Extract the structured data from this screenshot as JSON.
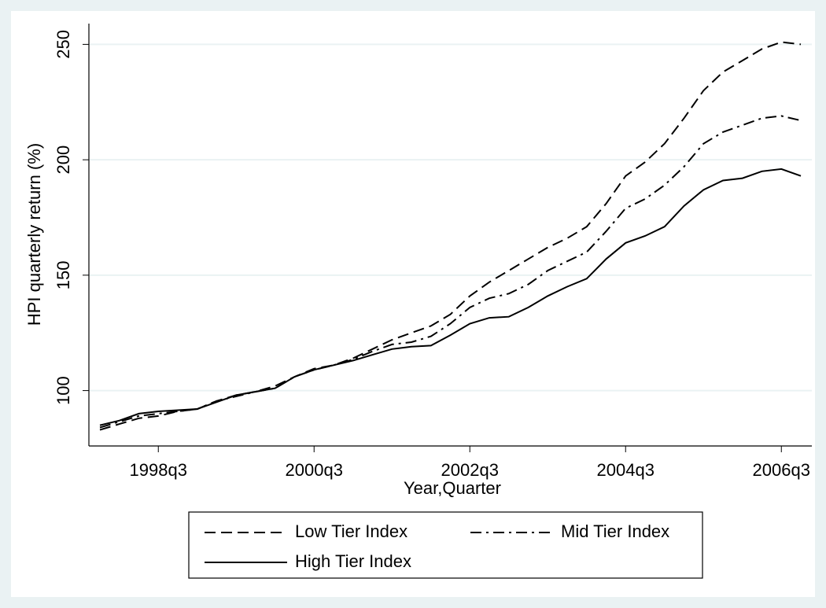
{
  "chart_data": {
    "type": "line",
    "y_label": "HPI quarterly return (%)",
    "x_label": "Year,Quarter",
    "x": [
      "1997q4",
      "1998q1",
      "1998q2",
      "1998q3",
      "1998q4",
      "1999q1",
      "1999q2",
      "1999q3",
      "1999q4",
      "2000q1",
      "2000q2",
      "2000q3",
      "2000q4",
      "2001q1",
      "2001q2",
      "2001q3",
      "2001q4",
      "2002q1",
      "2002q2",
      "2002q3",
      "2002q4",
      "2003q1",
      "2003q2",
      "2003q3",
      "2003q4",
      "2004q1",
      "2004q2",
      "2004q3",
      "2004q4",
      "2005q1",
      "2005q2",
      "2005q3",
      "2005q4",
      "2006q1",
      "2006q2",
      "2006q3",
      "2006q4"
    ],
    "series": [
      {
        "name": "Low Tier Index",
        "color": "#000000",
        "dash": "dashed",
        "values": [
          83,
          85.5,
          88,
          89,
          91,
          92,
          95.5,
          98,
          99.5,
          102,
          106,
          109.5,
          111,
          114,
          118,
          122,
          125,
          128,
          133,
          141,
          147,
          152,
          157,
          162,
          166,
          171,
          181,
          193,
          199,
          207,
          218,
          230,
          238,
          243,
          248,
          251,
          250
        ]
      },
      {
        "name": "Mid Tier Index",
        "color": "#000000",
        "dash": "dash-dot",
        "values": [
          84,
          86.5,
          89,
          90,
          91,
          92,
          95.5,
          97.5,
          99.5,
          101,
          106,
          109,
          111,
          113.5,
          117,
          120,
          121,
          123.5,
          129,
          136,
          140,
          142,
          146,
          152,
          156,
          160,
          169,
          179,
          183,
          189,
          197,
          207,
          212,
          215,
          218,
          219,
          217
        ]
      },
      {
        "name": "High Tier Index",
        "color": "#000000",
        "dash": "solid",
        "values": [
          85,
          87,
          90,
          91,
          91.5,
          92,
          95,
          98,
          99.5,
          101,
          106,
          109,
          111,
          113,
          115.5,
          118,
          119,
          119.5,
          124,
          129,
          131.5,
          132,
          136,
          141,
          145,
          148.5,
          157,
          164,
          167,
          171,
          180,
          187,
          191,
          192,
          195,
          196,
          193
        ]
      }
    ],
    "xticks": [
      "1998q3",
      "2000q3",
      "2002q3",
      "2004q3",
      "2006q3"
    ],
    "ylim": [
      76,
      259
    ],
    "yticks": [
      100,
      150,
      200,
      250
    ],
    "grid": true,
    "legend": "bottom"
  }
}
